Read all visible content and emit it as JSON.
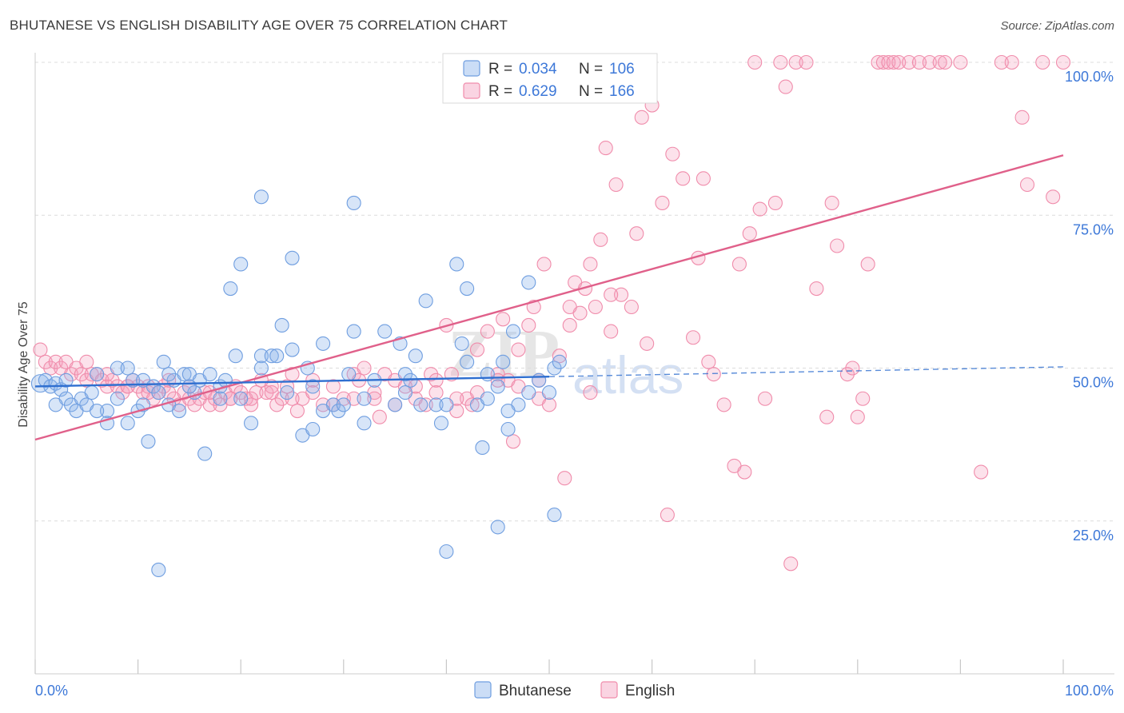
{
  "header": {
    "title": "BHUTANESE VS ENGLISH DISABILITY AGE OVER 75 CORRELATION CHART",
    "source": "Source: ZipAtlas.com"
  },
  "watermark": {
    "zip": "ZIP",
    "atlas": "atlas"
  },
  "legend_box": {
    "rows": [
      {
        "r_label": "R = ",
        "r_value": "0.034",
        "n_label": "N = ",
        "n_value": "106"
      },
      {
        "r_label": "R = ",
        "r_value": "0.629",
        "n_label": "N = ",
        "n_value": "166"
      }
    ]
  },
  "chart_data": {
    "type": "scatter",
    "title": "BHUTANESE VS ENGLISH DISABILITY AGE OVER 75 CORRELATION CHART",
    "xlabel": "",
    "ylabel": "Disability Age Over 75",
    "xlim": [
      0,
      100
    ],
    "ylim": [
      0,
      100
    ],
    "x_tick_labels": [
      "0.0%",
      "100.0%"
    ],
    "y_tick_labels": [
      "25.0%",
      "50.0%",
      "75.0%",
      "100.0%"
    ],
    "y_ticks": [
      25,
      50,
      75,
      100
    ],
    "grid": "horizontal dashed",
    "legend_position": "bottom-center",
    "colors": {
      "bhutanese": "#6f9ee0",
      "bhutanese_fill": "rgba(140,180,235,0.35)",
      "bhutanese_line": "#2f6fd0",
      "english": "#f08cab",
      "english_fill": "rgba(245,160,190,0.30)",
      "english_line": "#e0608a",
      "axis_text": "#3d78d8"
    },
    "series": [
      {
        "name": "Bhutanese",
        "R": 0.034,
        "N": 106,
        "trend": {
          "x0": 0,
          "y0": 47.0,
          "x1": 50,
          "y1": 48.6,
          "dashed_to": 100,
          "dashed_y": 50.2
        },
        "points": [
          [
            0.5,
            47.5
          ],
          [
            1,
            48
          ],
          [
            1.5,
            47
          ],
          [
            2,
            47.5
          ],
          [
            2.5,
            46.5
          ],
          [
            3,
            45
          ],
          [
            3.5,
            44
          ],
          [
            4,
            43
          ],
          [
            4.5,
            45
          ],
          [
            5,
            44
          ],
          [
            5.5,
            46
          ],
          [
            6,
            49
          ],
          [
            7,
            43
          ],
          [
            7,
            41
          ],
          [
            8,
            45
          ],
          [
            8,
            50
          ],
          [
            9,
            41
          ],
          [
            9.5,
            48
          ],
          [
            10,
            43
          ],
          [
            10.5,
            48
          ],
          [
            11,
            38
          ],
          [
            11.5,
            47
          ],
          [
            12,
            46
          ],
          [
            12.5,
            51
          ],
          [
            13,
            44
          ],
          [
            13.5,
            48
          ],
          [
            14,
            43
          ],
          [
            14.5,
            49
          ],
          [
            15,
            49
          ],
          [
            15.5,
            46
          ],
          [
            16,
            48
          ],
          [
            16.5,
            36
          ],
          [
            17,
            49
          ],
          [
            18,
            47
          ],
          [
            18.5,
            48
          ],
          [
            19,
            63
          ],
          [
            19.5,
            52
          ],
          [
            20,
            67
          ],
          [
            21,
            41
          ],
          [
            22,
            52
          ],
          [
            22,
            78
          ],
          [
            23,
            52
          ],
          [
            23.5,
            52
          ],
          [
            24,
            57
          ],
          [
            24.5,
            46
          ],
          [
            25,
            53
          ],
          [
            25,
            68
          ],
          [
            26,
            39
          ],
          [
            26.5,
            50
          ],
          [
            27,
            40
          ],
          [
            27,
            47
          ],
          [
            28,
            54
          ],
          [
            29,
            44
          ],
          [
            29.5,
            43
          ],
          [
            30,
            44
          ],
          [
            30.5,
            49
          ],
          [
            31,
            77
          ],
          [
            31,
            56
          ],
          [
            32,
            41
          ],
          [
            33,
            48
          ],
          [
            34,
            56
          ],
          [
            35,
            44
          ],
          [
            35.5,
            54
          ],
          [
            36,
            49
          ],
          [
            36.5,
            48
          ],
          [
            37,
            52
          ],
          [
            37.5,
            44
          ],
          [
            38,
            61
          ],
          [
            39,
            44
          ],
          [
            39.5,
            41
          ],
          [
            40,
            20
          ],
          [
            41,
            67
          ],
          [
            41.5,
            54
          ],
          [
            42,
            63
          ],
          [
            42,
            51
          ],
          [
            43,
            44
          ],
          [
            43.5,
            37
          ],
          [
            44,
            45
          ],
          [
            45,
            24
          ],
          [
            45,
            47
          ],
          [
            45.5,
            51
          ],
          [
            46,
            40
          ],
          [
            46.5,
            56
          ],
          [
            47,
            44
          ],
          [
            48,
            64
          ],
          [
            48,
            46
          ],
          [
            50,
            46
          ],
          [
            50.5,
            26
          ],
          [
            50.5,
            50
          ],
          [
            51,
            51
          ],
          [
            12,
            17
          ],
          [
            9,
            50
          ],
          [
            3,
            48
          ],
          [
            2,
            44
          ],
          [
            6,
            43
          ],
          [
            13,
            49
          ],
          [
            15,
            47
          ],
          [
            10.5,
            44
          ],
          [
            20,
            45
          ],
          [
            22,
            50
          ],
          [
            28,
            43
          ],
          [
            32,
            45
          ],
          [
            36,
            46
          ],
          [
            40,
            44
          ],
          [
            44,
            49
          ],
          [
            46,
            43
          ],
          [
            49,
            48
          ],
          [
            18,
            45
          ]
        ]
      },
      {
        "name": "English",
        "R": 0.629,
        "N": 166,
        "trend": {
          "x0": 0,
          "y0": 38.3,
          "x1": 100,
          "y1": 84.8
        },
        "points": [
          [
            0.5,
            53
          ],
          [
            1,
            51
          ],
          [
            1.5,
            50
          ],
          [
            2,
            51
          ],
          [
            2.5,
            50
          ],
          [
            3,
            51
          ],
          [
            3.5,
            49
          ],
          [
            4,
            50
          ],
          [
            4.5,
            49
          ],
          [
            5,
            48
          ],
          [
            5.5,
            49
          ],
          [
            6,
            49
          ],
          [
            6.5,
            48
          ],
          [
            7,
            47
          ],
          [
            7.5,
            48
          ],
          [
            8,
            47
          ],
          [
            8.5,
            46
          ],
          [
            9,
            47
          ],
          [
            9.5,
            48
          ],
          [
            10,
            47
          ],
          [
            10.5,
            46
          ],
          [
            11,
            47
          ],
          [
            11.5,
            45
          ],
          [
            12,
            46
          ],
          [
            12.5,
            47
          ],
          [
            13,
            46
          ],
          [
            13.5,
            45
          ],
          [
            14,
            44
          ],
          [
            14.5,
            46
          ],
          [
            15,
            45
          ],
          [
            15.5,
            44
          ],
          [
            16,
            45
          ],
          [
            16.5,
            46
          ],
          [
            17,
            44
          ],
          [
            17.5,
            45
          ],
          [
            18,
            44
          ],
          [
            18.5,
            46
          ],
          [
            19,
            45
          ],
          [
            19.5,
            47
          ],
          [
            20,
            46
          ],
          [
            20.5,
            45
          ],
          [
            21,
            44
          ],
          [
            21.5,
            46
          ],
          [
            22,
            48
          ],
          [
            22.5,
            46
          ],
          [
            23,
            47
          ],
          [
            23.5,
            44
          ],
          [
            24,
            45
          ],
          [
            24.5,
            47
          ],
          [
            25,
            49
          ],
          [
            25.5,
            43
          ],
          [
            26,
            45
          ],
          [
            27,
            48
          ],
          [
            28,
            44
          ],
          [
            29,
            47
          ],
          [
            30,
            45
          ],
          [
            31,
            49
          ],
          [
            31.5,
            48
          ],
          [
            32,
            50
          ],
          [
            33,
            46
          ],
          [
            33.5,
            42
          ],
          [
            34,
            49
          ],
          [
            35,
            48
          ],
          [
            36,
            47
          ],
          [
            37,
            45
          ],
          [
            38,
            44
          ],
          [
            38.5,
            49
          ],
          [
            39,
            48
          ],
          [
            40,
            57
          ],
          [
            40.5,
            49
          ],
          [
            41,
            43
          ],
          [
            42,
            45
          ],
          [
            42.5,
            44
          ],
          [
            43,
            53
          ],
          [
            44,
            56
          ],
          [
            45,
            49
          ],
          [
            45.5,
            58
          ],
          [
            46,
            48
          ],
          [
            46.5,
            38
          ],
          [
            47,
            53
          ],
          [
            48,
            57
          ],
          [
            48.5,
            60
          ],
          [
            49,
            45
          ],
          [
            49.5,
            67
          ],
          [
            50,
            44
          ],
          [
            51,
            52
          ],
          [
            51.5,
            32
          ],
          [
            52,
            57
          ],
          [
            52.5,
            64
          ],
          [
            53,
            59
          ],
          [
            53.5,
            63
          ],
          [
            54,
            67
          ],
          [
            54.5,
            60
          ],
          [
            55,
            71
          ],
          [
            55.5,
            86
          ],
          [
            56,
            56
          ],
          [
            56.5,
            80
          ],
          [
            57,
            62
          ],
          [
            58,
            60
          ],
          [
            58.5,
            72
          ],
          [
            59,
            91
          ],
          [
            59.5,
            54
          ],
          [
            60,
            93
          ],
          [
            61,
            77
          ],
          [
            61.5,
            26
          ],
          [
            62,
            85
          ],
          [
            63,
            81
          ],
          [
            64,
            55
          ],
          [
            64.5,
            68
          ],
          [
            65,
            81
          ],
          [
            65.5,
            51
          ],
          [
            66,
            49
          ],
          [
            67,
            44
          ],
          [
            68,
            34
          ],
          [
            68.5,
            67
          ],
          [
            69,
            33
          ],
          [
            69.5,
            72
          ],
          [
            70,
            100
          ],
          [
            70.5,
            76
          ],
          [
            71,
            45
          ],
          [
            72,
            77
          ],
          [
            72.5,
            100
          ],
          [
            73,
            96
          ],
          [
            73.5,
            18
          ],
          [
            74,
            100
          ],
          [
            75,
            100
          ],
          [
            76,
            63
          ],
          [
            77,
            42
          ],
          [
            77.5,
            77
          ],
          [
            78,
            70
          ],
          [
            79,
            49
          ],
          [
            79.5,
            50
          ],
          [
            80,
            42
          ],
          [
            80.5,
            45
          ],
          [
            81,
            67
          ],
          [
            82,
            100
          ],
          [
            82.5,
            100
          ],
          [
            83,
            100
          ],
          [
            83.5,
            100
          ],
          [
            84,
            100
          ],
          [
            85,
            100
          ],
          [
            86,
            100
          ],
          [
            87,
            100
          ],
          [
            88,
            100
          ],
          [
            88.5,
            100
          ],
          [
            90,
            100
          ],
          [
            92,
            33
          ],
          [
            94,
            100
          ],
          [
            95,
            100
          ],
          [
            96,
            91
          ],
          [
            96.5,
            80
          ],
          [
            98,
            100
          ],
          [
            99,
            78
          ],
          [
            100,
            100
          ],
          [
            5,
            51
          ],
          [
            7,
            49
          ],
          [
            9,
            47
          ],
          [
            11,
            46
          ],
          [
            13,
            48
          ],
          [
            15,
            47
          ],
          [
            17,
            46
          ],
          [
            19,
            45
          ],
          [
            21,
            45
          ],
          [
            23,
            46
          ],
          [
            25,
            45
          ],
          [
            27,
            46
          ],
          [
            29,
            44
          ],
          [
            31,
            45
          ],
          [
            33,
            45
          ],
          [
            35,
            44
          ],
          [
            37,
            47
          ],
          [
            39,
            46
          ],
          [
            41,
            45
          ],
          [
            43,
            46
          ],
          [
            45,
            48
          ],
          [
            47,
            47
          ],
          [
            49,
            48
          ],
          [
            52,
            60
          ],
          [
            54,
            46
          ],
          [
            56,
            62
          ]
        ]
      }
    ]
  },
  "legend": {
    "items": [
      {
        "label": "Bhutanese"
      },
      {
        "label": "English"
      }
    ]
  }
}
